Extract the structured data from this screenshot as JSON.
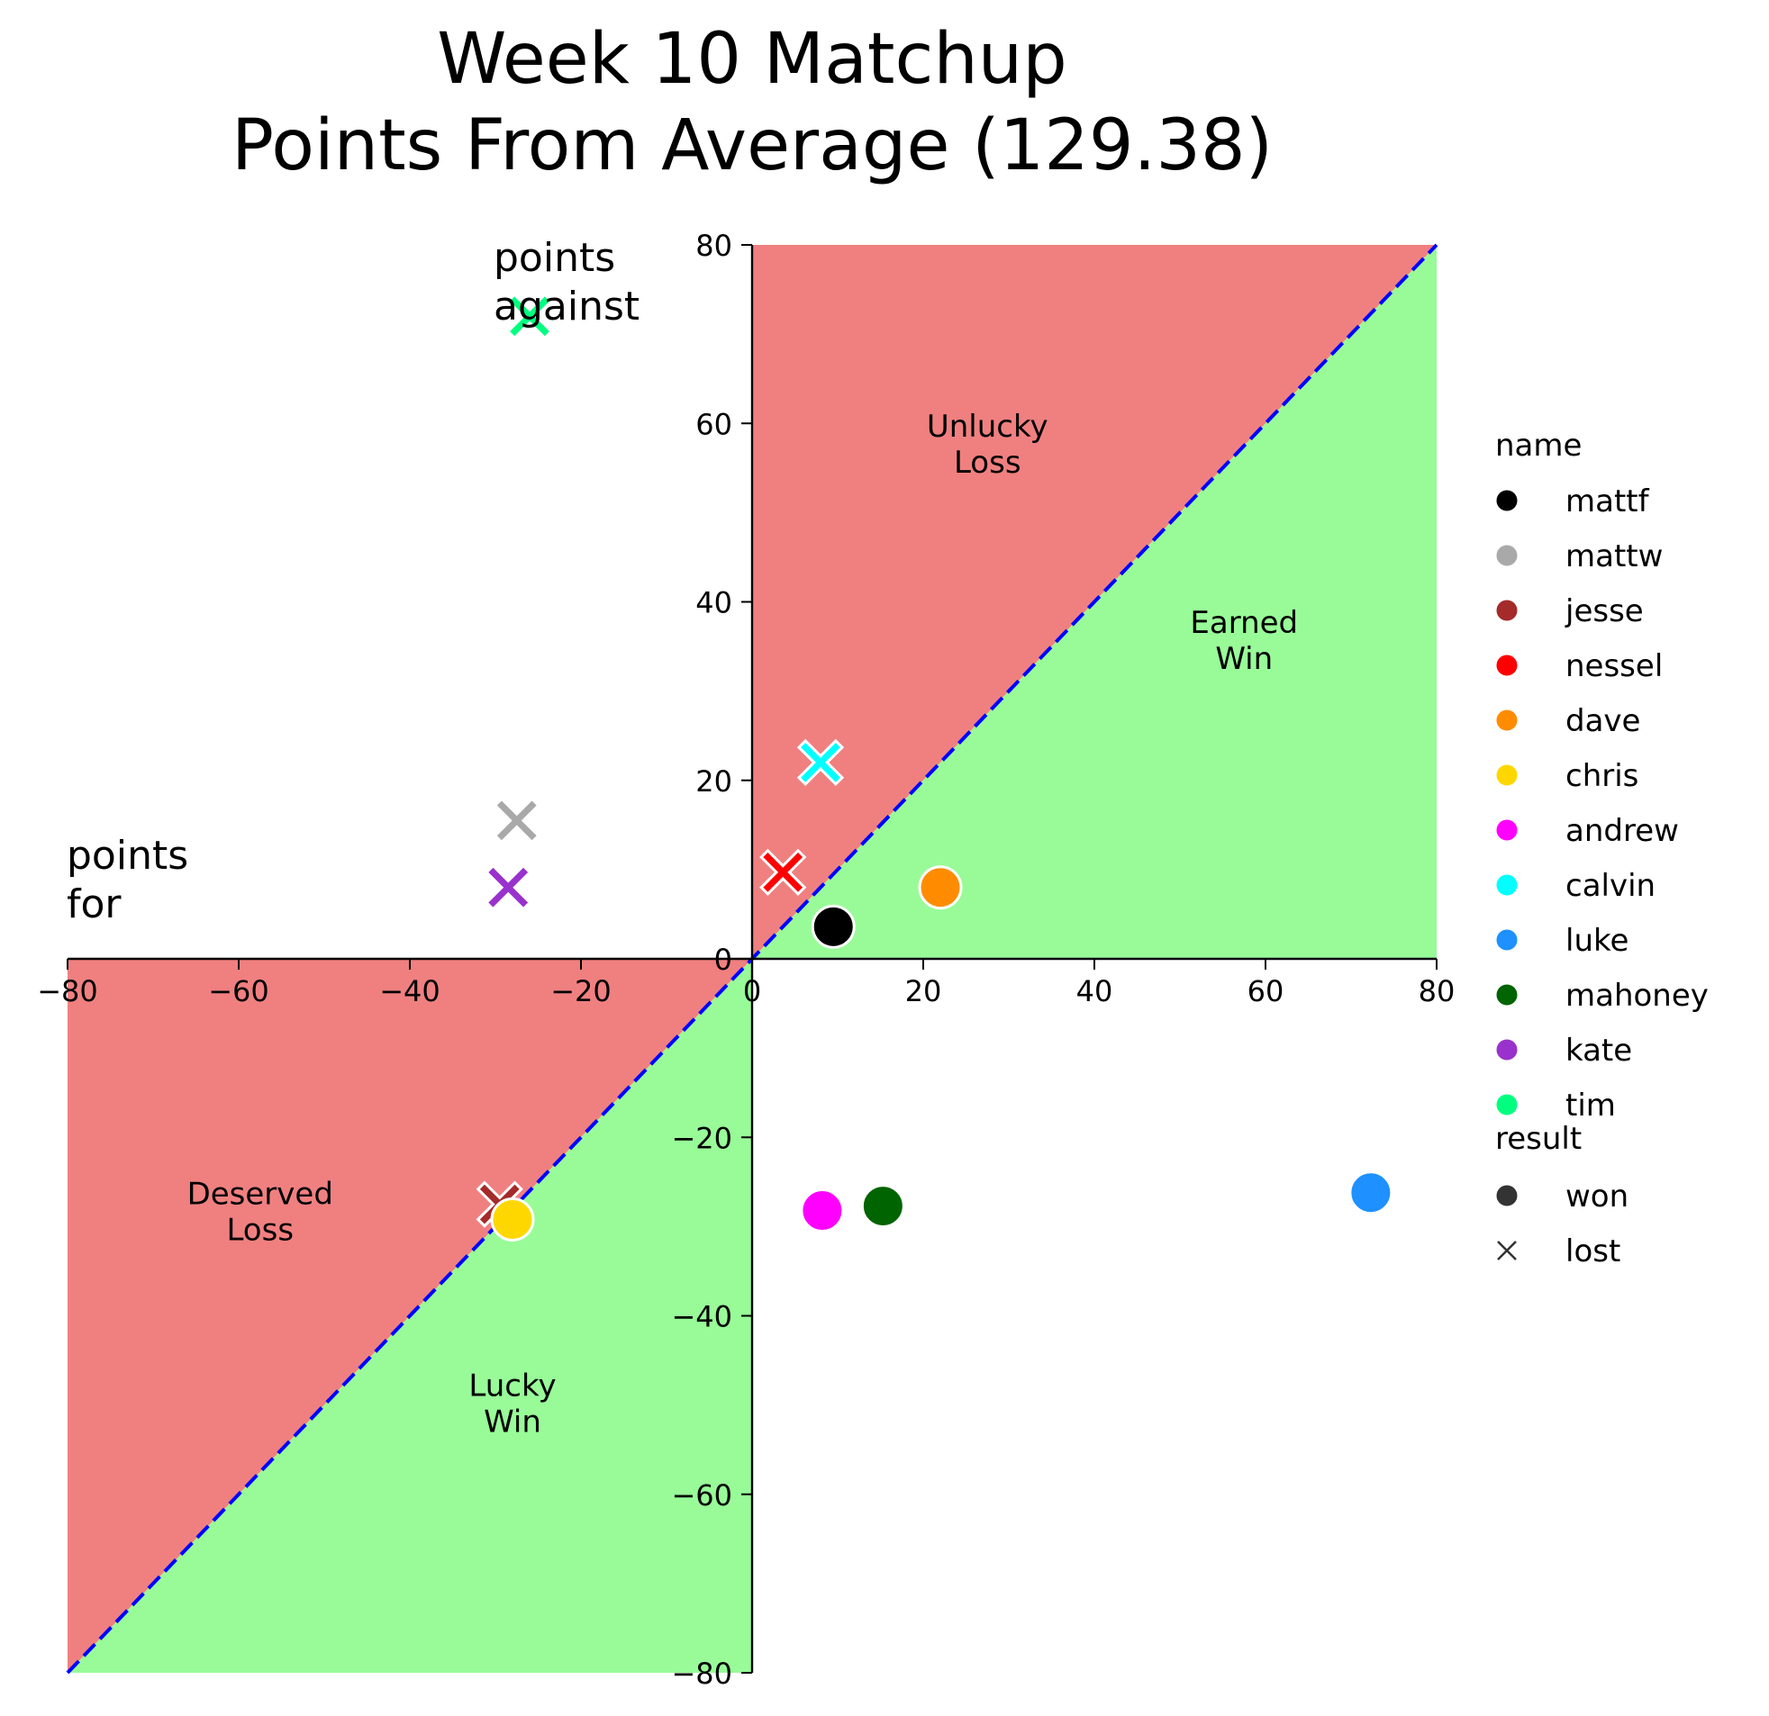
{
  "chart_data": {
    "type": "scatter",
    "title_lines": [
      "Week 10 Matchup",
      "Points From Average (129.38)"
    ],
    "xlabel_lines": [
      "points",
      "for"
    ],
    "ylabel_lines": [
      "points",
      "against"
    ],
    "xlim": [
      -80,
      80
    ],
    "ylim": [
      -80,
      80
    ],
    "x_ticks": [
      -80,
      -60,
      -40,
      -20,
      0,
      20,
      40,
      60,
      80
    ],
    "y_ticks": [
      -80,
      -60,
      -40,
      -20,
      0,
      20,
      40,
      60,
      80
    ],
    "x_tick_labels": [
      "−80",
      "−60",
      "−40",
      "−20",
      "0",
      "20",
      "40",
      "60",
      "80"
    ],
    "y_tick_labels": [
      "−80",
      "−60",
      "−40",
      "−20",
      "0",
      "20",
      "40",
      "60",
      "80"
    ],
    "grid": false,
    "diagonal": "y = x, blue dashed",
    "region_colors": {
      "loss": "#f08080",
      "win": "#98fb98"
    },
    "regions": [
      {
        "lines": [
          "Unlucky",
          "Loss"
        ],
        "at": [
          27.5,
          57.5
        ],
        "color": "#f08080"
      },
      {
        "lines": [
          "Earned",
          "Win"
        ],
        "at": [
          57.5,
          35.5
        ],
        "color": "#98fb98"
      },
      {
        "lines": [
          "Deserved",
          "Loss"
        ],
        "at": [
          -57.5,
          -28.5
        ],
        "color": "#f08080"
      },
      {
        "lines": [
          "Lucky",
          "Win"
        ],
        "at": [
          -28,
          -50
        ],
        "color": "#98fb98"
      }
    ],
    "legend": {
      "position": "right",
      "name_title": "name",
      "result_title": "result",
      "result_entries": [
        {
          "label": "won",
          "marker": "circle"
        },
        {
          "label": "lost",
          "marker": "x"
        }
      ]
    },
    "series": [
      {
        "name": "mattf",
        "color": "#000000",
        "result": "won",
        "x": 9.5,
        "y": 3.6
      },
      {
        "name": "mattw",
        "color": "#a9a9a9",
        "result": "lost",
        "x": -27.5,
        "y": 15.5
      },
      {
        "name": "jesse",
        "color": "#a52a2a",
        "result": "lost",
        "x": -29.5,
        "y": -27.5
      },
      {
        "name": "nessel",
        "color": "#ff0000",
        "result": "lost",
        "x": 3.6,
        "y": 9.7
      },
      {
        "name": "dave",
        "color": "#ff8c00",
        "result": "won",
        "x": 22.0,
        "y": 8.0
      },
      {
        "name": "chris",
        "color": "#ffd700",
        "result": "won",
        "x": -28.0,
        "y": -29.2
      },
      {
        "name": "andrew",
        "color": "#ff00ff",
        "result": "won",
        "x": 8.2,
        "y": -28.2
      },
      {
        "name": "calvin",
        "color": "#00ffff",
        "result": "lost",
        "x": 8.0,
        "y": 22.0
      },
      {
        "name": "luke",
        "color": "#1e90ff",
        "result": "won",
        "x": 72.3,
        "y": -26.2
      },
      {
        "name": "mahoney",
        "color": "#006400",
        "result": "won",
        "x": 15.3,
        "y": -27.7
      },
      {
        "name": "kate",
        "color": "#9932cc",
        "result": "lost",
        "x": -28.5,
        "y": 8.0
      },
      {
        "name": "tim",
        "color": "#00ff7f",
        "result": "lost",
        "x": -26.0,
        "y": 72.0
      }
    ]
  }
}
